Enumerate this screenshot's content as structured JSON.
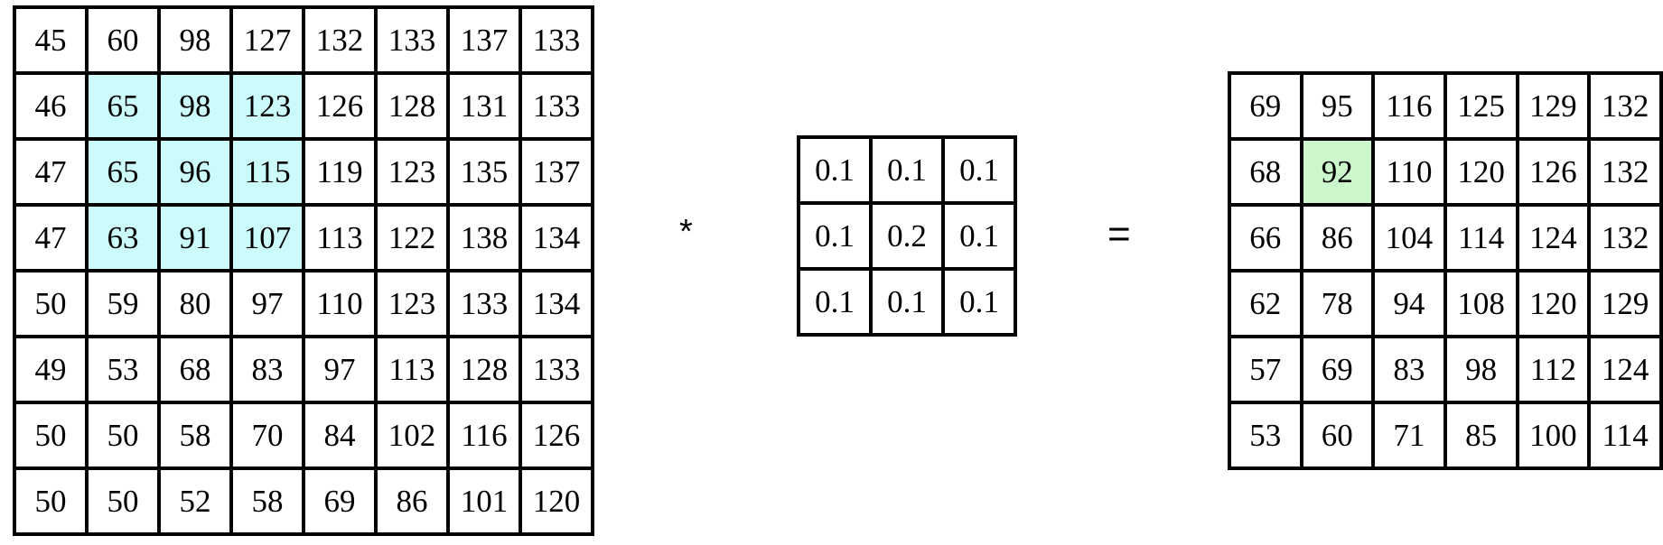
{
  "input": {
    "rows": [
      [
        45,
        60,
        98,
        127,
        132,
        133,
        137,
        133
      ],
      [
        46,
        65,
        98,
        123,
        126,
        128,
        131,
        133
      ],
      [
        47,
        65,
        96,
        115,
        119,
        123,
        135,
        137
      ],
      [
        47,
        63,
        91,
        107,
        113,
        122,
        138,
        134
      ],
      [
        50,
        59,
        80,
        97,
        110,
        123,
        133,
        134
      ],
      [
        49,
        53,
        68,
        83,
        97,
        113,
        128,
        133
      ],
      [
        50,
        50,
        58,
        70,
        84,
        102,
        116,
        126
      ],
      [
        50,
        50,
        52,
        58,
        69,
        86,
        101,
        120
      ]
    ],
    "highlight_rows": [
      1,
      2,
      3
    ],
    "highlight_cols": [
      1,
      2,
      3
    ],
    "highlight_color": "#ccfbfb"
  },
  "operators": {
    "convolve": "*",
    "equals": "="
  },
  "kernel": {
    "rows": [
      [
        "0.1",
        "0.1",
        "0.1"
      ],
      [
        "0.1",
        "0.2",
        "0.1"
      ],
      [
        "0.1",
        "0.1",
        "0.1"
      ]
    ]
  },
  "output": {
    "rows": [
      [
        69,
        95,
        116,
        125,
        129,
        132
      ],
      [
        68,
        92,
        110,
        120,
        126,
        132
      ],
      [
        66,
        86,
        104,
        114,
        124,
        132
      ],
      [
        62,
        78,
        94,
        108,
        120,
        129
      ],
      [
        57,
        69,
        83,
        98,
        112,
        124
      ],
      [
        53,
        60,
        71,
        85,
        100,
        114
      ]
    ],
    "highlight_row": 1,
    "highlight_col": 1,
    "highlight_color": "#ccf7cc"
  }
}
